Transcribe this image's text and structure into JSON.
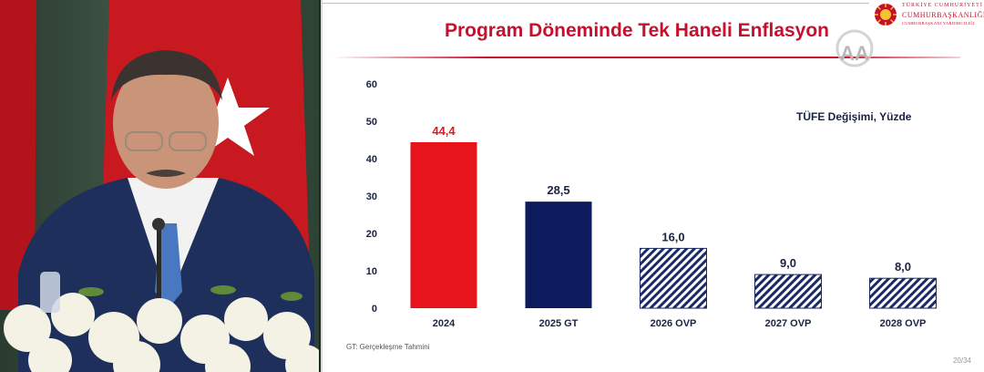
{
  "slide": {
    "title": "Program Döneminde Tek Haneli Enflasyon",
    "unit_label": "TÜFE Değişimi, Yüzde",
    "footnote": "GT: Gerçekleşme Tahmini",
    "page_number": "20/34",
    "brand": {
      "line1": "TÜRKİYE CUMHURİYETİ",
      "line2": "CUMHURBAŞKANLIĞI",
      "line3": "CUMHURBAŞKANI YARDIMCILIĞI"
    },
    "watermark": "AA"
  },
  "colors": {
    "title_red": "#c8102e",
    "bar_red": "#e8141c",
    "bar_navy": "#0d1b5e",
    "hatch_navy": "#1a2a66"
  },
  "chart_data": {
    "type": "bar",
    "title": "Program Döneminde Tek Haneli Enflasyon",
    "ylabel": "TÜFE Değişimi, Yüzde",
    "xlabel": "",
    "categories": [
      "2024",
      "2025 GT",
      "2026 OVP",
      "2027 OVP",
      "2028 OVP"
    ],
    "values": [
      44.4,
      28.5,
      16.0,
      9.0,
      8.0
    ],
    "value_labels": [
      "44,4",
      "28,5",
      "16,0",
      "9,0",
      "8,0"
    ],
    "bar_styles": [
      "solid-red",
      "solid-navy",
      "hatched",
      "hatched",
      "hatched"
    ],
    "ylim": [
      0,
      60
    ],
    "yticks": [
      "0",
      "10",
      "20",
      "30",
      "40",
      "50",
      "60"
    ],
    "grid": false,
    "legend": "none"
  }
}
